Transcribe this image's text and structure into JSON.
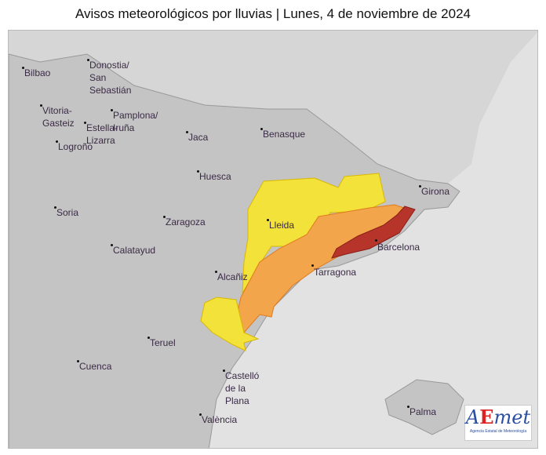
{
  "title": "Avisos meteorológicos por lluvias | Lunes, 4 de noviembre de 2024",
  "colors": {
    "sea": "#e2e2e2",
    "spain": "#c4c4c4",
    "france": "#d6d6d6",
    "yellow": "#f2e23a",
    "orange": "#f2a54a",
    "red": "#b7342b"
  },
  "cities": [
    "Bilbao",
    "Donostia/\nSan\nSebastián",
    "Vitoria-\nGasteiz",
    "Pamplona/\nIruña",
    "Estella-\nLizarra",
    "Logroño",
    "Jaca",
    "Benasque",
    "Huesca",
    "Girona",
    "Soria",
    "Zaragoza",
    "Lleida",
    "Barcelona",
    "Calatayud",
    "Alcañiz",
    "Tarragona",
    "Teruel",
    "Cuenca",
    "Castelló\nde la\nPlana",
    "València",
    "Palma"
  ],
  "warnings": [
    {
      "level": "yellow"
    },
    {
      "level": "orange"
    },
    {
      "level": "red"
    }
  ],
  "logo": {
    "text": "AEmet",
    "subtitle": "Agencia Estatal de Meteorología"
  }
}
